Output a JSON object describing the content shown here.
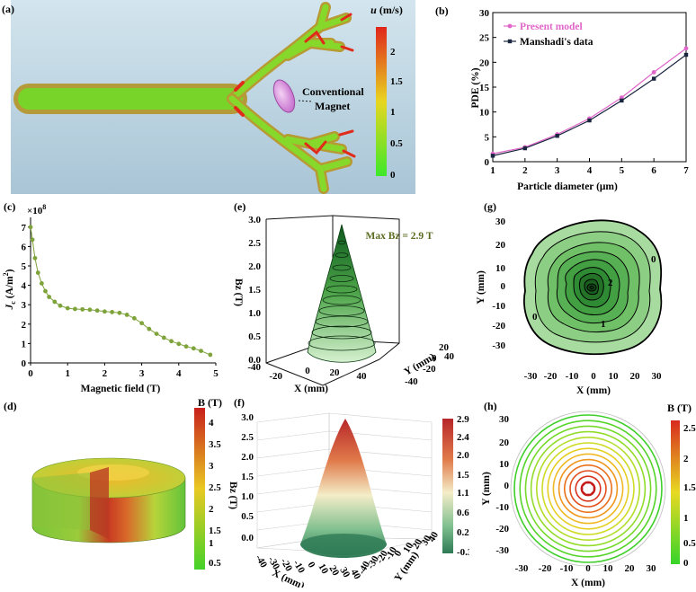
{
  "panels": {
    "a": {
      "label": "(a)",
      "colorbar": {
        "title_var": "u",
        "title_unit": " (m/s)",
        "ticks": [
          "2",
          "1.5",
          "1",
          "0.5",
          "0"
        ]
      },
      "annotation": [
        "Conventional",
        "Magnet"
      ]
    },
    "d": {
      "label": "(d)",
      "colorbar": {
        "title": "B (T)",
        "ticks": [
          "4",
          "3.5",
          "3",
          "2.5",
          "2",
          "1.5",
          "1",
          "0.5"
        ]
      }
    },
    "e": {
      "label": "(e)",
      "annotation": "Max Bz = 2.9 T"
    },
    "f": {
      "label": "(f)",
      "colorbar": {
        "ticks": [
          "2.9",
          "2.4",
          "2.0",
          "1.5",
          "1.1",
          "0.6",
          "0.2",
          "-0.3"
        ]
      }
    },
    "g": {
      "label": "(g)",
      "contour_labels": [
        "0",
        "2",
        "1",
        "0"
      ]
    },
    "h": {
      "label": "(h)",
      "colorbar": {
        "title": "B (T)",
        "ticks": [
          "2.5",
          "2",
          "1.5",
          "1",
          "0.5",
          "0"
        ]
      }
    }
  },
  "chart_data": [
    {
      "id": "b",
      "label": "(b)",
      "type": "line",
      "xlabel": "Particle diameter (μm)",
      "ylabel": "PDE (%)",
      "xlim": [
        1,
        7
      ],
      "ylim": [
        0,
        30
      ],
      "xticks": [
        "1",
        "2",
        "3",
        "4",
        "5",
        "6",
        "7"
      ],
      "yticks": [
        "0",
        "5",
        "10",
        "15",
        "20",
        "25",
        "30"
      ],
      "x": [
        1,
        2,
        3,
        4,
        5,
        6,
        7
      ],
      "series": [
        {
          "name": "Present model",
          "color": "#e066c9",
          "values": [
            1.6,
            2.9,
            5.5,
            8.7,
            12.9,
            18.0,
            22.8
          ]
        },
        {
          "name": "Manshadi's data",
          "color": "#1a2540",
          "values": [
            1.2,
            2.7,
            5.2,
            8.3,
            12.3,
            16.7,
            21.5
          ]
        }
      ],
      "legend": "top-left"
    },
    {
      "id": "c",
      "label": "(c)",
      "type": "line",
      "multiplier": "×10",
      "multiplier_exp": "8",
      "xlabel": "Magnetic field (T)",
      "ylabel_main": "J",
      "ylabel_sub": "c",
      "ylabel_unit": " (A/m",
      "ylabel_sup": "2",
      "ylabel_end": ")",
      "xlim": [
        0,
        5
      ],
      "ylim": [
        0,
        7.5
      ],
      "xticks": [
        "0",
        "1",
        "2",
        "3",
        "4",
        "5"
      ],
      "yticks": [
        "0",
        "1",
        "2",
        "3",
        "4",
        "5",
        "6",
        "7"
      ],
      "color": "#7ea33a",
      "x": [
        0.0,
        0.05,
        0.12,
        0.2,
        0.3,
        0.4,
        0.5,
        0.65,
        0.8,
        1.0,
        1.2,
        1.4,
        1.6,
        1.8,
        2.0,
        2.2,
        2.4,
        2.6,
        2.8,
        3.0,
        3.2,
        3.4,
        3.6,
        3.8,
        4.0,
        4.2,
        4.4,
        4.6,
        4.85
      ],
      "values": [
        7.0,
        6.35,
        5.4,
        4.65,
        4.1,
        3.7,
        3.4,
        3.15,
        2.95,
        2.82,
        2.78,
        2.76,
        2.74,
        2.7,
        2.65,
        2.62,
        2.58,
        2.48,
        2.3,
        2.05,
        1.75,
        1.5,
        1.3,
        1.12,
        0.98,
        0.85,
        0.75,
        0.62,
        0.42
      ]
    },
    {
      "id": "e",
      "type": "surface",
      "zlabel": "Bz (T)",
      "xlabel": "X (mm)",
      "ylabel": "Y (mm)",
      "zticks": [
        "3.0",
        "2.5",
        "2.0",
        "1.5",
        "1.0",
        "0.5",
        "0.0"
      ],
      "xticks": [
        "-40",
        "-20",
        "0",
        "20",
        "40"
      ],
      "yticks": [
        "-40",
        "-20",
        "0",
        "20",
        "40"
      ]
    },
    {
      "id": "f",
      "type": "surface",
      "zlabel": "Bz (T)",
      "xlabel": "X (mm)",
      "ylabel": "Y (mm)",
      "zticks": [
        "3.0",
        "2.5",
        "2.0",
        "1.5",
        "1.0",
        "0.5",
        "0.0"
      ],
      "xticks": [
        "-40",
        "-30",
        "-20",
        "-10",
        "0",
        "10",
        "20",
        "30",
        "40"
      ],
      "yticks": [
        "-40",
        "-30",
        "-20",
        "-10",
        "0",
        "10",
        "20",
        "30",
        "40"
      ]
    },
    {
      "id": "g",
      "type": "contour",
      "xlabel": "X (mm)",
      "ylabel": "Y (mm)",
      "xticks": [
        "-30",
        "-20",
        "-10",
        "0",
        "10",
        "20",
        "30"
      ],
      "yticks": [
        "30",
        "20",
        "10",
        "0",
        "-10",
        "-20",
        "-30"
      ]
    },
    {
      "id": "h",
      "type": "contour",
      "xlabel": "X (mm)",
      "ylabel": "Y (mm)",
      "xticks": [
        "-30",
        "-20",
        "-10",
        "0",
        "10",
        "20",
        "30"
      ],
      "yticks": [
        "30",
        "20",
        "10",
        "0",
        "-10",
        "-20",
        "-30"
      ]
    }
  ]
}
